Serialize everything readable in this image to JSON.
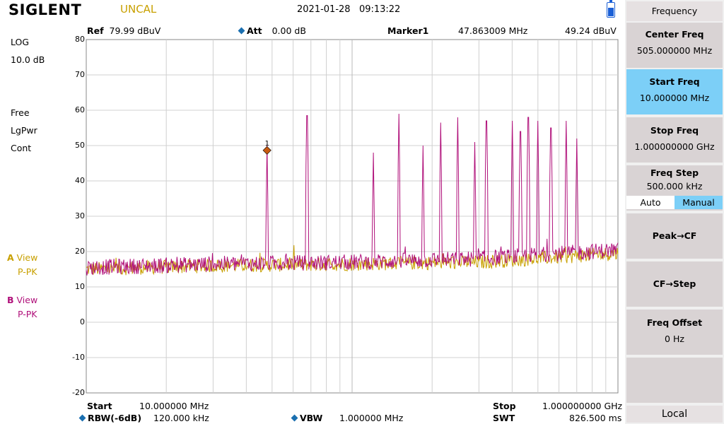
{
  "top": {
    "logo": "SIGLENT",
    "uncal": "UNCAL",
    "datetime": "2021-01-28   09:13:22"
  },
  "left_status": {
    "scale_type": "LOG",
    "scale_div": "10.0 dB",
    "trig": "Free",
    "avg": "LgPwr",
    "sweep": "Cont",
    "trace_a_letter": "A",
    "trace_a_mode": "View",
    "trace_a_det": "P-PK",
    "trace_b_letter": "B",
    "trace_b_mode": "View",
    "trace_b_det": "P-PK"
  },
  "header": {
    "ref_label": "Ref",
    "ref_value": "79.99 dBuV",
    "att_label": "Att",
    "att_value": "0.00 dB",
    "marker_label": "Marker1",
    "marker_freq": "47.863009 MHz",
    "marker_amp": "49.24 dBuV"
  },
  "y_ticks": [
    "80",
    "70",
    "60",
    "50",
    "40",
    "30",
    "20",
    "10",
    "0",
    "-10",
    "-20"
  ],
  "footer": {
    "start_label": "Start",
    "start_value": "10.000000 MHz",
    "stop_label": "Stop",
    "stop_value": "1.000000000 GHz",
    "rbw_label": "RBW(-6dB)",
    "rbw_value": "120.000 kHz",
    "vbw_label": "VBW",
    "vbw_value": "1.000000 MHz",
    "swt_label": "SWT",
    "swt_value": "826.500 ms"
  },
  "panel": {
    "title": "Frequency",
    "center_label": "Center Freq",
    "center_value": "505.000000 MHz",
    "start_label": "Start Freq",
    "start_value": "10.000000 MHz",
    "stop_label": "Stop Freq",
    "stop_value": "1.000000000 GHz",
    "step_label": "Freq Step",
    "step_value": "500.000 kHz",
    "auto": "Auto",
    "manual": "Manual",
    "peak_cf": "Peak→CF",
    "cf_step": "CF→Step",
    "offset_label": "Freq Offset",
    "offset_value": "0 Hz",
    "local": "Local"
  },
  "colors": {
    "trace_a": "#c8a000",
    "trace_b": "#b0107a",
    "marker": "#c85a10",
    "selected": "#7ccff7"
  },
  "chart_data": {
    "type": "line",
    "x_scale": "log",
    "x_range_mhz": [
      10,
      1000
    ],
    "ylim": [
      -20,
      80
    ],
    "y_unit": "dBuV",
    "grid": true,
    "marker": {
      "label": "1",
      "freq_mhz": 47.863009,
      "amp": 49.24
    },
    "series": [
      {
        "name": "A",
        "noise_floor": [
          [
            10,
            15
          ],
          [
            30,
            16
          ],
          [
            100,
            16.5
          ],
          [
            300,
            17
          ],
          [
            1000,
            19.5
          ]
        ]
      },
      {
        "name": "B",
        "noise_floor": [
          [
            10,
            15.5
          ],
          [
            30,
            16.5
          ],
          [
            100,
            17
          ],
          [
            300,
            18
          ],
          [
            1000,
            20.5
          ]
        ],
        "peaks_mhz_amp": [
          [
            47.86,
            50
          ],
          [
            67.7,
            58.5
          ],
          [
            120,
            48
          ],
          [
            150,
            59
          ],
          [
            185,
            50
          ],
          [
            215,
            56.5
          ],
          [
            250,
            58
          ],
          [
            290,
            51
          ],
          [
            320,
            57
          ],
          [
            400,
            57
          ],
          [
            430,
            54
          ],
          [
            460,
            58
          ],
          [
            500,
            57
          ],
          [
            560,
            55
          ],
          [
            640,
            57
          ],
          [
            700,
            52
          ]
        ]
      }
    ]
  }
}
